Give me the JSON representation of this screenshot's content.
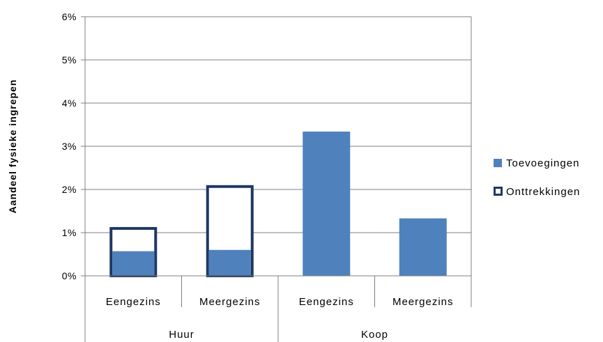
{
  "chart_data": {
    "type": "bar",
    "ylabel": "Aandeel fysieke ingrepen",
    "ylim": [
      0,
      6
    ],
    "yticks": [
      "0%",
      "1%",
      "2%",
      "3%",
      "4%",
      "5%",
      "6%"
    ],
    "groups": [
      {
        "label": "Huur",
        "categories": [
          "Eengezins",
          "Meergezins"
        ]
      },
      {
        "label": "Koop",
        "categories": [
          "Eengezins",
          "Meergezins"
        ]
      }
    ],
    "categories": [
      "Eengezins",
      "Meergezins",
      "Eengezins",
      "Meergezins"
    ],
    "series": [
      {
        "name": "Toevoegingen",
        "values": [
          0.57,
          0.6,
          3.34,
          1.33
        ],
        "color": "#4f81bd"
      },
      {
        "name": "Onttrekkingen",
        "values": [
          1.13,
          2.1,
          null,
          null
        ],
        "color": "#1f3864"
      }
    ],
    "grid": true,
    "legend": "right"
  }
}
